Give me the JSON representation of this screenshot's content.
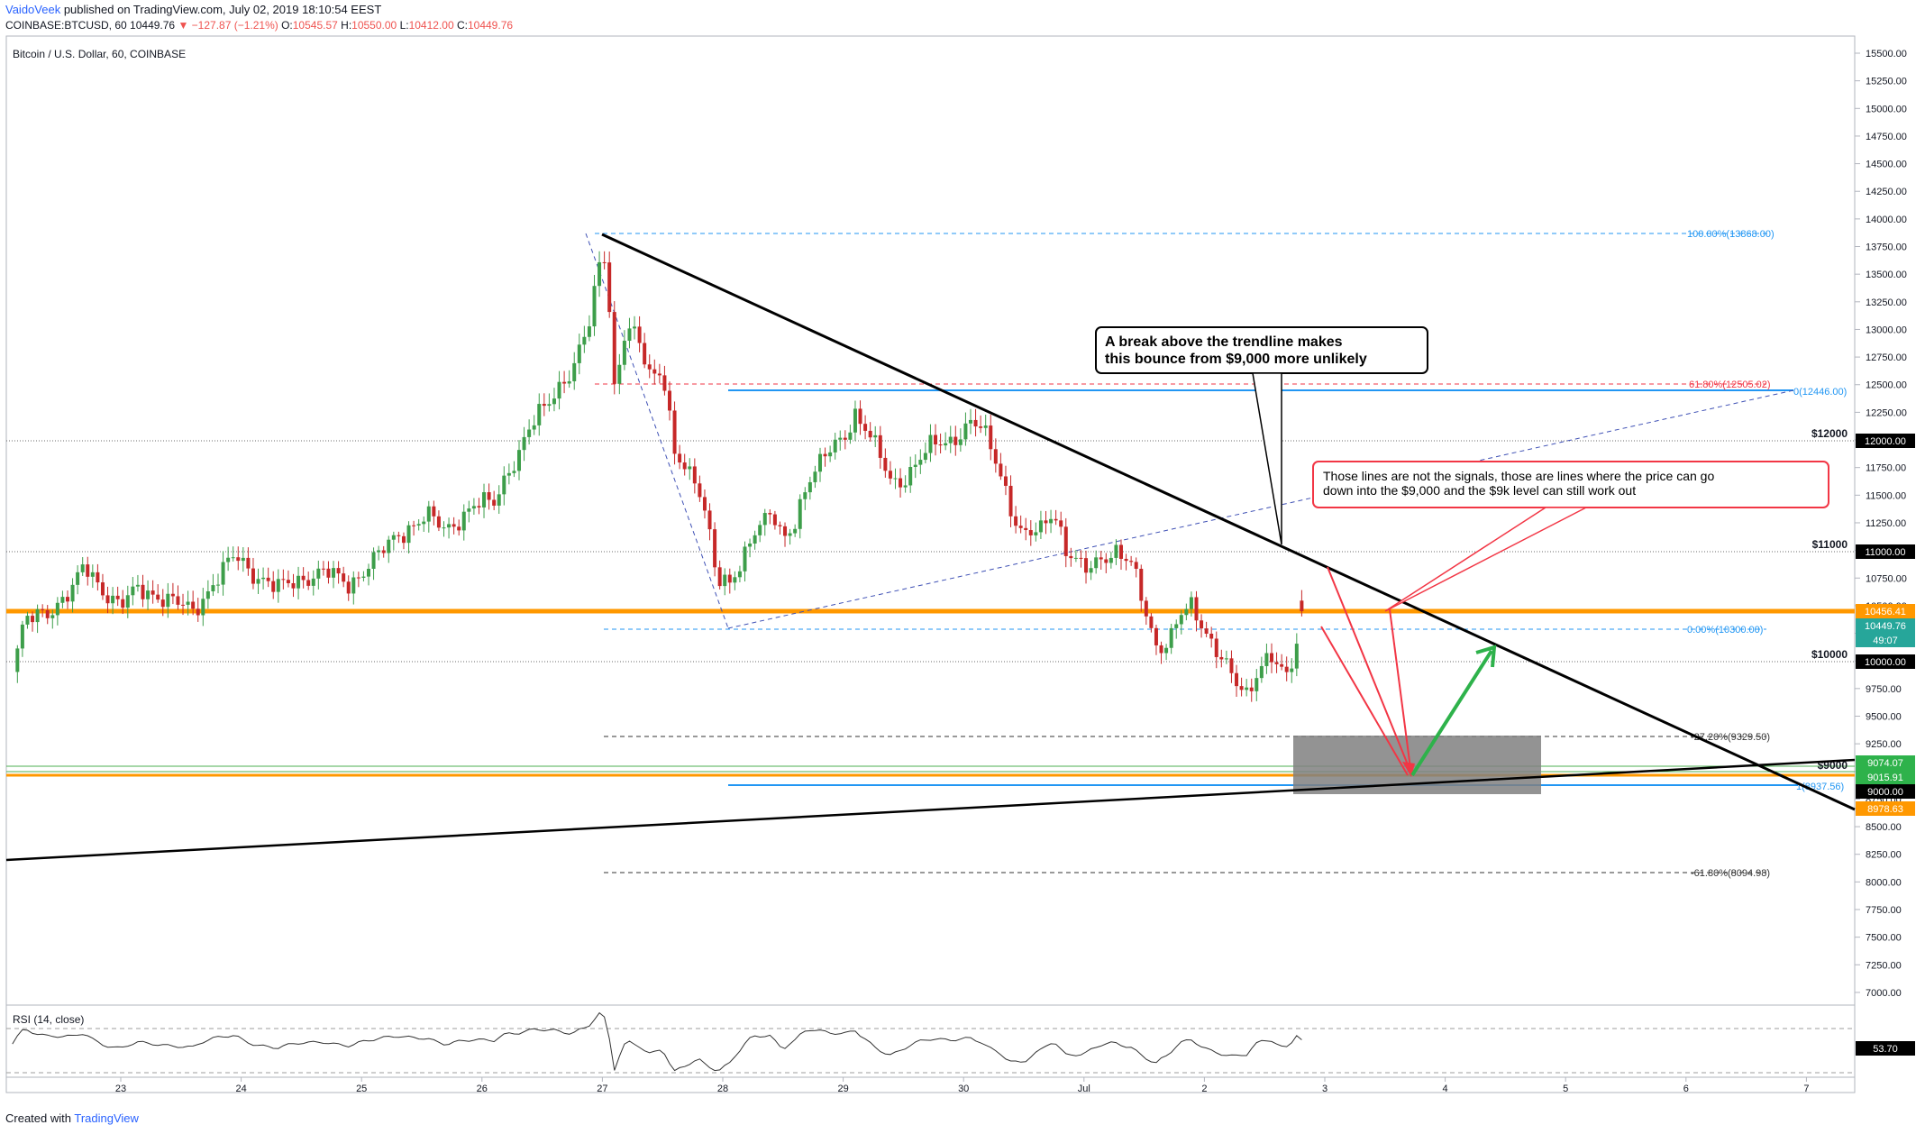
{
  "header": {
    "author": "VaidoVeek",
    "published": "published on TradingView.com, July 02, 2019 18:10:54 EEST",
    "symbol_line": "COINBASE:BTCUSD, 60",
    "last": "10449.76",
    "change": "▼ −127.87 (−1.21%)",
    "o_label": "O:",
    "o": "10545.57",
    "h_label": "H:",
    "h": "10550.00",
    "l_label": "L:",
    "l": "10412.00",
    "c_label": "C:",
    "c": "10449.76"
  },
  "pane_title": "Bitcoin / U.S. Dollar, 60, COINBASE",
  "rsi_title": "RSI (14, close)",
  "footer": {
    "created_with": "Created with",
    "brand": "TradingView"
  },
  "colors": {
    "up": "#26a69a",
    "up_fill": "#3d9e4a",
    "down": "#c62828",
    "orange": "#ff9800",
    "blue": "#2196f3",
    "green": "#4caf50",
    "red": "#f23645"
  },
  "annotations": {
    "box1_line1": "A break above the trendline makes",
    "box1_line2": "this bounce from $9,000 more unlikely",
    "box2_line1": "Those lines are not the signals, those are lines where the price can go",
    "box2_line2": "down into the $9,000 and the $9k level can still work out"
  },
  "level_labels": {
    "l12000": "$12000",
    "l11000": "$11000",
    "l10000": "$10000",
    "l9000": "$9000"
  },
  "fib_labels": {
    "f100": "100.00%(13868.00)",
    "f618a": "61.80%(12505.02)",
    "f0b": "0(12446.00)",
    "f0": "0.00%(10300.00)",
    "f272": "-27.20%(9329.50)",
    "f1": "1(8937.56)",
    "f618b": "-61.80%(8094.98)"
  },
  "price_axis_badges": {
    "b10456": "10456.41",
    "b10449": "10449.76",
    "countdown": "49:07",
    "b10000": "10000.00",
    "b11000": "11000.00",
    "b12000": "12000.00",
    "b9074": "9074.07",
    "b9015": "9015.91",
    "b9000": "9000.00",
    "b8978": "8978.63",
    "rsi": "53.70"
  },
  "chart_data": {
    "type": "candlestick",
    "symbol": "COINBASE:BTCUSD",
    "interval": "60",
    "x_ticks": [
      "23",
      "24",
      "25",
      "26",
      "27",
      "28",
      "29",
      "30",
      "Jul",
      "2",
      "3",
      "4",
      "5",
      "6",
      "7"
    ],
    "y_ticks": [
      7000,
      7250,
      7500,
      7750,
      8000,
      8250,
      8500,
      8750,
      9000,
      9250,
      9500,
      9750,
      10000,
      10250,
      10500,
      10750,
      11000,
      11250,
      11500,
      11750,
      12000,
      12250,
      12500,
      12750,
      13000,
      13250,
      13500,
      13750,
      14000,
      14250,
      14500,
      14750,
      15000,
      15250,
      15500
    ],
    "ylim": [
      6950,
      15600
    ],
    "price_path": [
      [
        0,
        9900
      ],
      [
        0.1,
        10350
      ],
      [
        0.3,
        10450
      ],
      [
        0.5,
        10650
      ],
      [
        0.6,
        10850
      ],
      [
        0.75,
        10650
      ],
      [
        0.9,
        10500
      ],
      [
        1.05,
        10650
      ],
      [
        1.2,
        10600
      ],
      [
        1.5,
        10450
      ],
      [
        1.7,
        10750
      ],
      [
        1.85,
        10950
      ],
      [
        2.0,
        10800
      ],
      [
        2.2,
        10650
      ],
      [
        2.4,
        10750
      ],
      [
        2.6,
        10800
      ],
      [
        2.8,
        10700
      ],
      [
        3.0,
        10900
      ],
      [
        3.2,
        11150
      ],
      [
        3.45,
        11300
      ],
      [
        3.6,
        11200
      ],
      [
        3.85,
        11400
      ],
      [
        4.0,
        11450
      ],
      [
        4.1,
        11700
      ],
      [
        4.2,
        11850
      ],
      [
        4.35,
        12200
      ],
      [
        4.5,
        12450
      ],
      [
        4.65,
        12600
      ],
      [
        4.78,
        13000
      ],
      [
        4.85,
        13450
      ],
      [
        4.9,
        13800
      ],
      [
        4.95,
        13400
      ],
      [
        5.0,
        12450
      ],
      [
        5.1,
        13000
      ],
      [
        5.2,
        12900
      ],
      [
        5.3,
        12600
      ],
      [
        5.4,
        12650
      ],
      [
        5.5,
        11850
      ],
      [
        5.6,
        11700
      ],
      [
        5.7,
        11600
      ],
      [
        5.8,
        11150
      ],
      [
        5.85,
        10750
      ],
      [
        5.95,
        10650
      ],
      [
        6.05,
        10850
      ],
      [
        6.15,
        11200
      ],
      [
        6.3,
        11350
      ],
      [
        6.4,
        11050
      ],
      [
        6.5,
        11250
      ],
      [
        6.6,
        11650
      ],
      [
        6.75,
        11850
      ],
      [
        6.9,
        12000
      ],
      [
        7.0,
        12250
      ],
      [
        7.1,
        12100
      ],
      [
        7.2,
        11850
      ],
      [
        7.3,
        11600
      ],
      [
        7.4,
        11650
      ],
      [
        7.55,
        11850
      ],
      [
        7.65,
        11950
      ],
      [
        7.8,
        12000
      ],
      [
        7.95,
        12150
      ],
      [
        8.05,
        12100
      ],
      [
        8.2,
        11750
      ],
      [
        8.3,
        11350
      ],
      [
        8.4,
        11100
      ],
      [
        8.55,
        11200
      ],
      [
        8.65,
        11400
      ],
      [
        8.75,
        11000
      ],
      [
        8.9,
        10800
      ],
      [
        9.05,
        10950
      ],
      [
        9.15,
        11000
      ],
      [
        9.3,
        10850
      ],
      [
        9.4,
        10500
      ],
      [
        9.5,
        10150
      ],
      [
        9.6,
        10150
      ],
      [
        9.7,
        10400
      ],
      [
        9.8,
        10500
      ],
      [
        9.9,
        10300
      ],
      [
        10.0,
        10100
      ],
      [
        10.15,
        9800
      ],
      [
        10.25,
        9700
      ],
      [
        10.35,
        9950
      ],
      [
        10.45,
        10050
      ],
      [
        10.55,
        9850
      ],
      [
        10.6,
        9850
      ],
      [
        10.72,
        10449.76
      ]
    ],
    "rsi": {
      "name": "RSI (14, close)",
      "ylim": [
        20,
        85
      ],
      "bands": [
        30,
        70
      ],
      "ticks": [
        35,
        50,
        75
      ],
      "last": 53.7
    }
  }
}
